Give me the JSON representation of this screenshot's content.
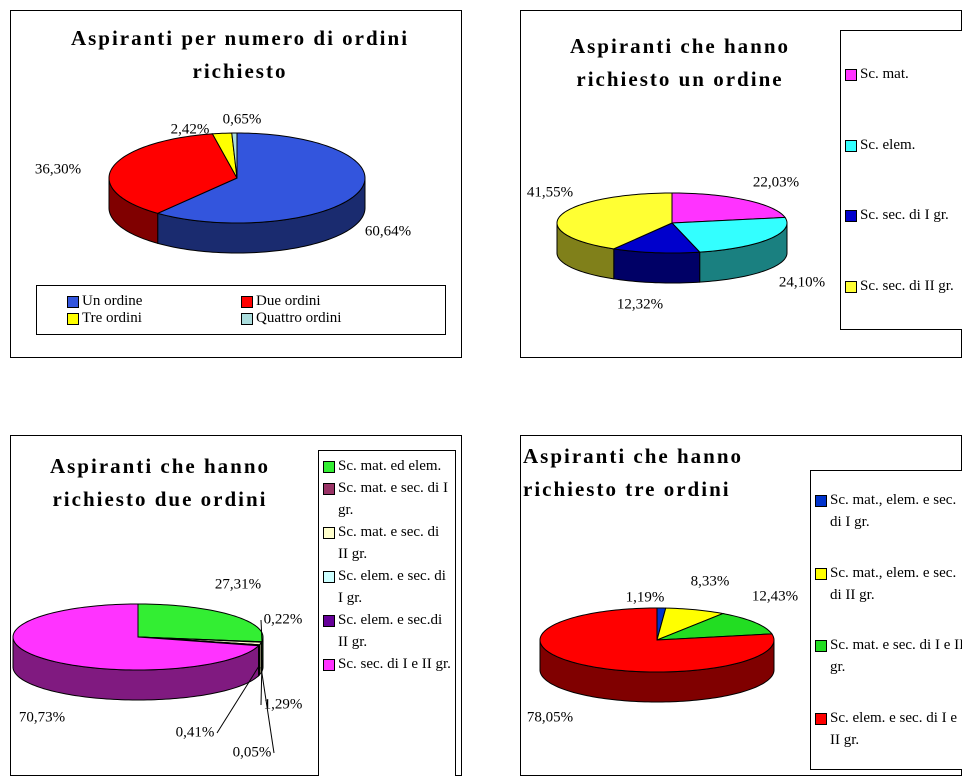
{
  "chart_data": [
    {
      "type": "pie",
      "title": "Aspiranti per numero di ordini richiesto",
      "categories": [
        "Un ordine",
        "Due ordini",
        "Tre ordini",
        "Quattro ordini"
      ],
      "values": [
        60.64,
        36.3,
        2.42,
        0.65
      ],
      "value_labels": [
        "60,64%",
        "36,30%",
        "2,42%",
        "0,65%"
      ],
      "colors": [
        "#3355dd",
        "#ff0000",
        "#ffff00",
        "#aadddd"
      ]
    },
    {
      "type": "pie",
      "title": "Aspiranti che hanno richiesto un ordine",
      "categories": [
        "Sc. mat.",
        "Sc. elem.",
        "Sc. sec. di I gr.",
        "Sc. sec. di II gr."
      ],
      "values": [
        22.03,
        24.1,
        12.32,
        41.55
      ],
      "value_labels": [
        "22,03%",
        "24,10%",
        "12,32%",
        "41,55%"
      ],
      "colors": [
        "#ff33ff",
        "#33ffff",
        "#0000cc",
        "#ffff33"
      ]
    },
    {
      "type": "pie",
      "title": "Aspiranti che hanno richiesto due ordini",
      "categories": [
        "Sc. mat. ed elem.",
        "Sc. mat. e sec. di I gr.",
        "Sc. mat. e sec. di II gr.",
        "Sc. elem. e sec. di I gr.",
        "Sc. elem. e sec.di II gr.",
        "Sc. sec. di I e II gr."
      ],
      "values": [
        27.31,
        0.22,
        1.29,
        0.05,
        0.41,
        70.73
      ],
      "value_labels": [
        "27,31%",
        "0,22%",
        "1,29%",
        "0,05%",
        "0,41%",
        "70,73%"
      ],
      "colors": [
        "#33ee33",
        "#993366",
        "#ffffcc",
        "#ccffff",
        "#660099",
        "#ff33ff"
      ]
    },
    {
      "type": "pie",
      "title": "Aspiranti che hanno richiesto tre ordini",
      "categories": [
        "Sc. mat., elem. e sec. di I gr.",
        "Sc. mat., elem. e sec. di II gr.",
        "Sc. mat. e sec. di I e II gr.",
        "Sc. elem. e sec. di I e II gr."
      ],
      "values": [
        1.19,
        8.33,
        12.43,
        78.05
      ],
      "value_labels": [
        "1,19%",
        "8,33%",
        "12,43%",
        "78,05%"
      ],
      "colors": [
        "#0033cc",
        "#ffff00",
        "#22dd22",
        "#ff0000"
      ]
    }
  ]
}
